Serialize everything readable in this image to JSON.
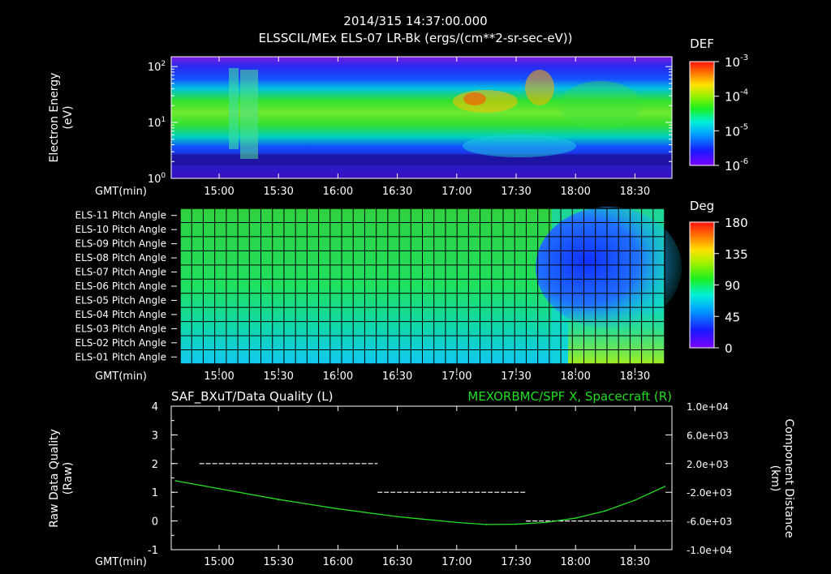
{
  "header": {
    "timestamp": "2014/315 14:37:00.000",
    "title": "ELSSCIL/MEx ELS-07 LR-Bk  (ergs/(cm**2-sr-sec-eV))"
  },
  "time_axis": {
    "label": "GMT(min)",
    "ticks": [
      "15:00",
      "15:30",
      "16:00",
      "16:30",
      "17:00",
      "17:30",
      "18:00",
      "18:30"
    ]
  },
  "chart_data": [
    {
      "type": "heatmap",
      "name": "spectrogram",
      "ylabel_line1": "Electron Energy",
      "ylabel_line2": "(eV)",
      "yscale": "log",
      "ylim": [
        1,
        150
      ],
      "yticks": [
        {
          "base": "10",
          "exp": "0",
          "value": 1
        },
        {
          "base": "10",
          "exp": "1",
          "value": 10
        },
        {
          "base": "10",
          "exp": "2",
          "value": 100
        }
      ],
      "colorbar": {
        "title": "DEF",
        "scale": "log",
        "ticks": [
          {
            "base": "10",
            "exp": "-3",
            "value": 0.001
          },
          {
            "base": "10",
            "exp": "-4",
            "value": 0.0001
          },
          {
            "base": "10",
            "exp": "-5",
            "value": 1e-05
          },
          {
            "base": "10",
            "exp": "-6",
            "value": 1e-06
          }
        ]
      }
    },
    {
      "type": "heatmap",
      "name": "pitch_angle",
      "rows": [
        "ELS-11 Pitch Angle",
        "ELS-10 Pitch Angle",
        "ELS-09 Pitch Angle",
        "ELS-08 Pitch Angle",
        "ELS-07 Pitch Angle",
        "ELS-06 Pitch Angle",
        "ELS-05 Pitch Angle",
        "ELS-04 Pitch Angle",
        "ELS-03 Pitch Angle",
        "ELS-02 Pitch Angle",
        "ELS-01 Pitch Angle"
      ],
      "zlim": [
        0,
        180
      ],
      "colorbar": {
        "title": "Deg",
        "ticks": [
          "180",
          "135",
          "90",
          "45",
          "0"
        ]
      }
    },
    {
      "type": "line",
      "name": "data_quality",
      "left_title": "SAF_BXuT/Data Quality (L)",
      "right_title": "MEXORBMC/SPF X, Spacecraft (R)",
      "right_color": "#22dd22",
      "ylabel_left_line1": "Raw Data Quality",
      "ylabel_left_line2": "(Raw)",
      "ylabel_right_line1": "Component Distance",
      "ylabel_right_line2": "(km)",
      "ylim_left": [
        -1,
        4
      ],
      "yticks_left": [
        "4",
        "3",
        "2",
        "1",
        "0",
        "-1"
      ],
      "ylim_right": [
        -10000,
        10000
      ],
      "yticks_right": [
        "1.0e+04",
        "6.0e+03",
        "2.0e+03",
        "-2.0e+03",
        "-6.0e+03",
        "-1.0e+04"
      ],
      "series": [
        {
          "name": "SAF_BXuT/Data Quality (L)",
          "axis": "left",
          "segments": [
            {
              "x": [
                "14:50",
                "16:20"
              ],
              "y": 2
            },
            {
              "x": [
                "16:20",
                "17:35"
              ],
              "y": 1
            },
            {
              "x": [
                "17:35",
                "18:45"
              ],
              "y": 0
            }
          ]
        },
        {
          "name": "MEXORBMC/SPF X, Spacecraft (R)",
          "axis": "right",
          "x": [
            "14:38",
            "15:00",
            "15:30",
            "16:00",
            "16:30",
            "17:00",
            "17:15",
            "17:30",
            "17:45",
            "18:00",
            "18:15",
            "18:30",
            "18:45"
          ],
          "y": [
            -400,
            -1500,
            -3000,
            -4300,
            -5400,
            -6200,
            -6500,
            -6450,
            -6200,
            -5600,
            -4600,
            -3100,
            -1200
          ]
        }
      ]
    }
  ]
}
